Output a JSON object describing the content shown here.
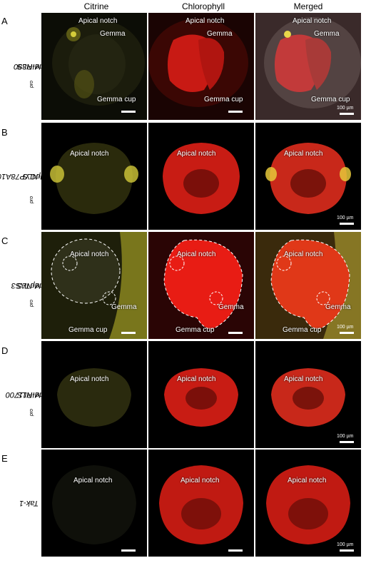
{
  "columns": [
    "Citrine",
    "Chlorophyll",
    "Merged"
  ],
  "rows": [
    {
      "letter": "A",
      "genotype_prefix": "MIR390",
      "genotype_sub": "pro",
      "genotype_suffix": ":Citrine-NLS",
      "labels": {
        "apical_notch": "Apical notch",
        "gemma": "Gemma",
        "gemma_cup": "Gemma cup"
      }
    },
    {
      "letter": "B",
      "genotype_prefix": "MpCYP78A101",
      "genotype_sub": "pro",
      "genotype_suffix": ":Citrine-NLS",
      "labels": {
        "apical_notch": "Apical notch"
      }
    },
    {
      "letter": "C",
      "genotype_prefix": "MpTAS3",
      "genotype_sub": "pro",
      "genotype_suffix": ":Citrine-NLS",
      "labels": {
        "apical_notch": "Apical notch",
        "gemma": "Gemma",
        "gemma_cup": "Gemma cup"
      }
    },
    {
      "letter": "D",
      "genotype_prefix": "MIR11700",
      "genotype_sub": "pro",
      "genotype_suffix": ":Citrine-NLS",
      "labels": {
        "apical_notch": "Apical notch"
      }
    },
    {
      "letter": "E",
      "genotype_prefix": "Tak-1",
      "genotype_sub": "",
      "genotype_suffix": "",
      "labels": {
        "apical_notch": "Apical notch"
      }
    }
  ],
  "scale_bar_label": "100 µm",
  "colors": {
    "citrine": "#c9c23a",
    "chlorophyll": "#e0231c",
    "background": "#000000"
  }
}
